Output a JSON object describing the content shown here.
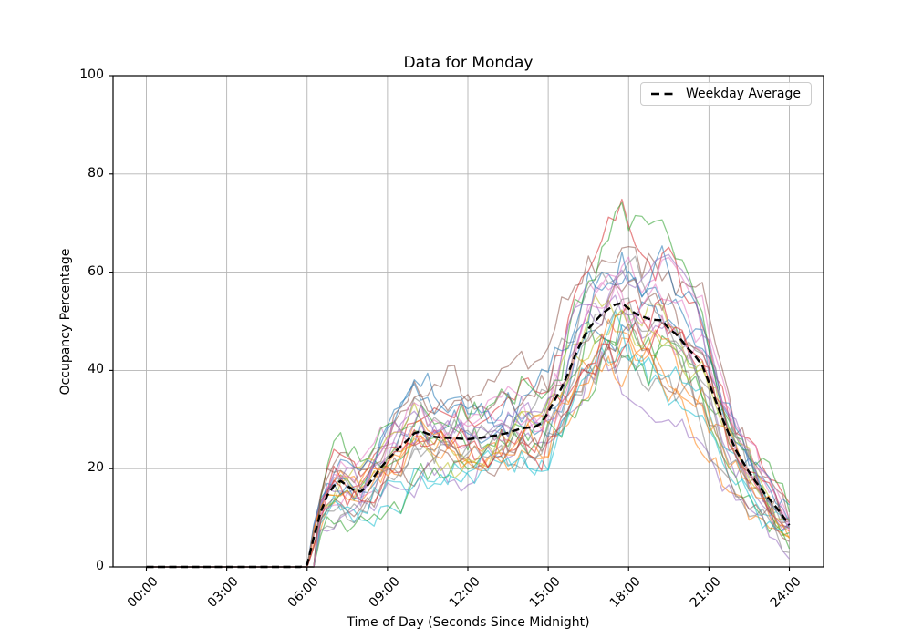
{
  "chart_data": {
    "type": "line",
    "title": "Data for Monday",
    "xlabel": "Time of Day (Seconds Since Midnight)",
    "ylabel": "Occupancy Percentage",
    "xlim_hours": [
      0,
      24
    ],
    "ylim": [
      0,
      100
    ],
    "grid": true,
    "grid_color": "#b4b4b4",
    "background_color": "#ffffff",
    "spine_color": "#000000",
    "xticks": [
      {
        "hour": 0,
        "label": "00:00"
      },
      {
        "hour": 3,
        "label": "03:00"
      },
      {
        "hour": 6,
        "label": "06:00"
      },
      {
        "hour": 9,
        "label": "09:00"
      },
      {
        "hour": 12,
        "label": "12:00"
      },
      {
        "hour": 15,
        "label": "15:00"
      },
      {
        "hour": 18,
        "label": "18:00"
      },
      {
        "hour": 21,
        "label": "21:00"
      },
      {
        "hour": 24,
        "label": "24:00"
      }
    ],
    "yticks": [
      "0",
      "20",
      "40",
      "60",
      "80",
      "100"
    ],
    "ytick_values": [
      0,
      20,
      40,
      60,
      80,
      100
    ],
    "legend": {
      "label": "Weekday Average",
      "line_style": "dashed",
      "line_color": "#000000",
      "location": "upper right"
    },
    "average_series": {
      "name": "Weekday Average",
      "color": "#000000",
      "style": "dashed",
      "line_width": 2.4,
      "points_hour_value": [
        [
          0,
          0
        ],
        [
          5.75,
          0
        ],
        [
          6,
          0.5
        ],
        [
          6.25,
          6
        ],
        [
          6.5,
          11
        ],
        [
          6.75,
          14.5
        ],
        [
          7,
          16.5
        ],
        [
          7.25,
          17.5
        ],
        [
          7.5,
          16.5
        ],
        [
          7.75,
          15.6
        ],
        [
          8,
          15.3
        ],
        [
          8.25,
          16.5
        ],
        [
          8.5,
          18.4
        ],
        [
          8.75,
          20.2
        ],
        [
          9,
          21.8
        ],
        [
          9.25,
          23.2
        ],
        [
          9.5,
          24.6
        ],
        [
          9.75,
          25.8
        ],
        [
          10,
          27.2
        ],
        [
          10.25,
          27.6
        ],
        [
          10.5,
          27.1
        ],
        [
          10.75,
          26.5
        ],
        [
          11,
          26.3
        ],
        [
          11.5,
          26.2
        ],
        [
          12,
          26
        ],
        [
          12.5,
          26.3
        ],
        [
          13,
          26.7
        ],
        [
          13.5,
          27.3
        ],
        [
          14,
          28.2
        ],
        [
          14.5,
          28.5
        ],
        [
          14.75,
          29.3
        ],
        [
          15,
          31.5
        ],
        [
          15.25,
          34
        ],
        [
          15.5,
          36.5
        ],
        [
          15.75,
          39.5
        ],
        [
          16,
          43
        ],
        [
          16.25,
          46
        ],
        [
          16.5,
          48.5
        ],
        [
          16.75,
          50
        ],
        [
          17,
          51.5
        ],
        [
          17.25,
          52.5
        ],
        [
          17.5,
          53.4
        ],
        [
          17.75,
          53.7
        ],
        [
          18,
          52.6
        ],
        [
          18.25,
          51.6
        ],
        [
          18.5,
          51
        ],
        [
          18.75,
          50.5
        ],
        [
          19,
          50.3
        ],
        [
          19.25,
          50.2
        ],
        [
          19.5,
          48.5
        ],
        [
          19.75,
          47.5
        ],
        [
          20,
          46
        ],
        [
          20.25,
          44.3
        ],
        [
          20.5,
          42.8
        ],
        [
          20.75,
          41
        ],
        [
          21,
          37.5
        ],
        [
          21.25,
          33.8
        ],
        [
          21.5,
          30.2
        ],
        [
          21.75,
          27
        ],
        [
          22,
          23.8
        ],
        [
          22.25,
          21.5
        ],
        [
          22.5,
          19.3
        ],
        [
          22.75,
          17.3
        ],
        [
          23,
          15.5
        ],
        [
          23.25,
          13.8
        ],
        [
          23.5,
          12.2
        ],
        [
          23.75,
          10.4
        ],
        [
          24,
          8.5
        ]
      ]
    },
    "ensemble": {
      "series_count": 28,
      "alpha": 0.55,
      "line_width": 1.3,
      "colors": [
        "#1f77b4",
        "#ff7f0e",
        "#2ca02c",
        "#d62728",
        "#9467bd",
        "#8c564b",
        "#e377c2",
        "#7f7f7f",
        "#bcbd22",
        "#17becf"
      ],
      "seeds": [
        11,
        23,
        37,
        41,
        53,
        67,
        71,
        83,
        97,
        101,
        113,
        127,
        131,
        139,
        149,
        151,
        163,
        173,
        181,
        191,
        193,
        197,
        199,
        211,
        223,
        227,
        229,
        233
      ],
      "gain_range": [
        0.72,
        1.3
      ],
      "noise_amp": 3.1,
      "step_hours": 0.25,
      "flat_zero_until_hour": 6,
      "max_start_delay_hours": 0.5,
      "end_hour": 24,
      "value_range_at_end": [
        3,
        23
      ],
      "peak_value_range": [
        35,
        70
      ]
    }
  }
}
